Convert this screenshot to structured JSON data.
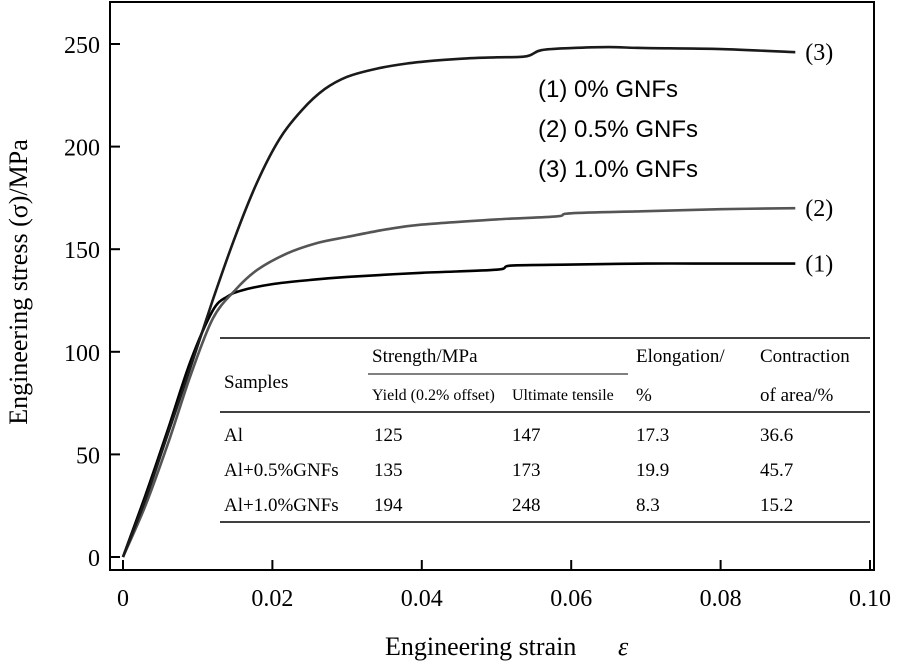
{
  "chart_data": {
    "type": "line",
    "xlabel": "Engineering strain",
    "xlabel_symbol": "ε",
    "ylabel": "Engineering stress (σ)/MPa",
    "xlim": [
      0,
      0.1
    ],
    "ylim": [
      0,
      260
    ],
    "x_ticks": [
      0,
      0.02,
      0.04,
      0.06,
      0.08,
      0.1
    ],
    "x_tick_labels": [
      "0",
      "0.02",
      "0.04",
      "0.06",
      "0.08",
      "0.10"
    ],
    "y_ticks": [
      0,
      50,
      100,
      150,
      200,
      250
    ],
    "y_tick_labels": [
      "0",
      "50",
      "100",
      "150",
      "200",
      "250"
    ],
    "grid": false,
    "legend": [
      "(1) 0% GNFs",
      "(2) 0.5% GNFs",
      "(3) 1.0% GNFs"
    ],
    "legend_position": "top-right",
    "series": [
      {
        "name": "(1) 0% GNFs",
        "end_label": "(1)",
        "color": "#000000",
        "x": [
          0,
          0.003,
          0.006,
          0.009,
          0.012,
          0.014,
          0.016,
          0.02,
          0.025,
          0.03,
          0.04,
          0.05,
          0.052,
          0.06,
          0.07,
          0.08,
          0.09
        ],
        "y": [
          0,
          30,
          62,
          95,
          120,
          127,
          130,
          133,
          135,
          136.5,
          138.5,
          140,
          142,
          142.5,
          143,
          143,
          143
        ]
      },
      {
        "name": "(2) 0.5% GNFs",
        "end_label": "(2)",
        "color": "#555555",
        "x": [
          0,
          0.003,
          0.006,
          0.009,
          0.012,
          0.015,
          0.018,
          0.022,
          0.026,
          0.03,
          0.035,
          0.04,
          0.05,
          0.058,
          0.06,
          0.07,
          0.08,
          0.09
        ],
        "y": [
          0,
          25,
          55,
          88,
          116,
          130,
          140,
          148,
          153,
          156,
          159.5,
          162,
          164.5,
          166,
          167.5,
          168.5,
          169.5,
          170
        ]
      },
      {
        "name": "(3) 1.0% GNFs",
        "end_label": "(3)",
        "color": "#1a1a1a",
        "x": [
          0,
          0.003,
          0.006,
          0.009,
          0.012,
          0.015,
          0.018,
          0.021,
          0.024,
          0.027,
          0.03,
          0.034,
          0.038,
          0.042,
          0.046,
          0.05,
          0.054,
          0.056,
          0.06,
          0.065,
          0.07,
          0.08,
          0.09
        ],
        "y": [
          0,
          28,
          60,
          92,
          125,
          156,
          183,
          204,
          218,
          228,
          234,
          238,
          240.5,
          242,
          243,
          243.5,
          244,
          247,
          248,
          248.5,
          248,
          247.5,
          246
        ]
      }
    ],
    "table": {
      "header_samples": "Samples",
      "header_strength": "Strength/MPa",
      "header_yield": "Yield (0.2% offset)",
      "header_ultimate": "Ultimate tensile",
      "header_elong_1": "Elongation/",
      "header_elong_2": "%",
      "header_contr_1": "Contraction",
      "header_contr_2": "of area/%",
      "rows": [
        {
          "sample": "Al",
          "yield": "125",
          "ultimate": "147",
          "elongation": "17.3",
          "contraction": "36.6"
        },
        {
          "sample": "Al+0.5%GNFs",
          "yield": "135",
          "ultimate": "173",
          "elongation": "19.9",
          "contraction": "45.7"
        },
        {
          "sample": "Al+1.0%GNFs",
          "yield": "194",
          "ultimate": "248",
          "elongation": "8.3",
          "contraction": "15.2"
        }
      ]
    }
  }
}
